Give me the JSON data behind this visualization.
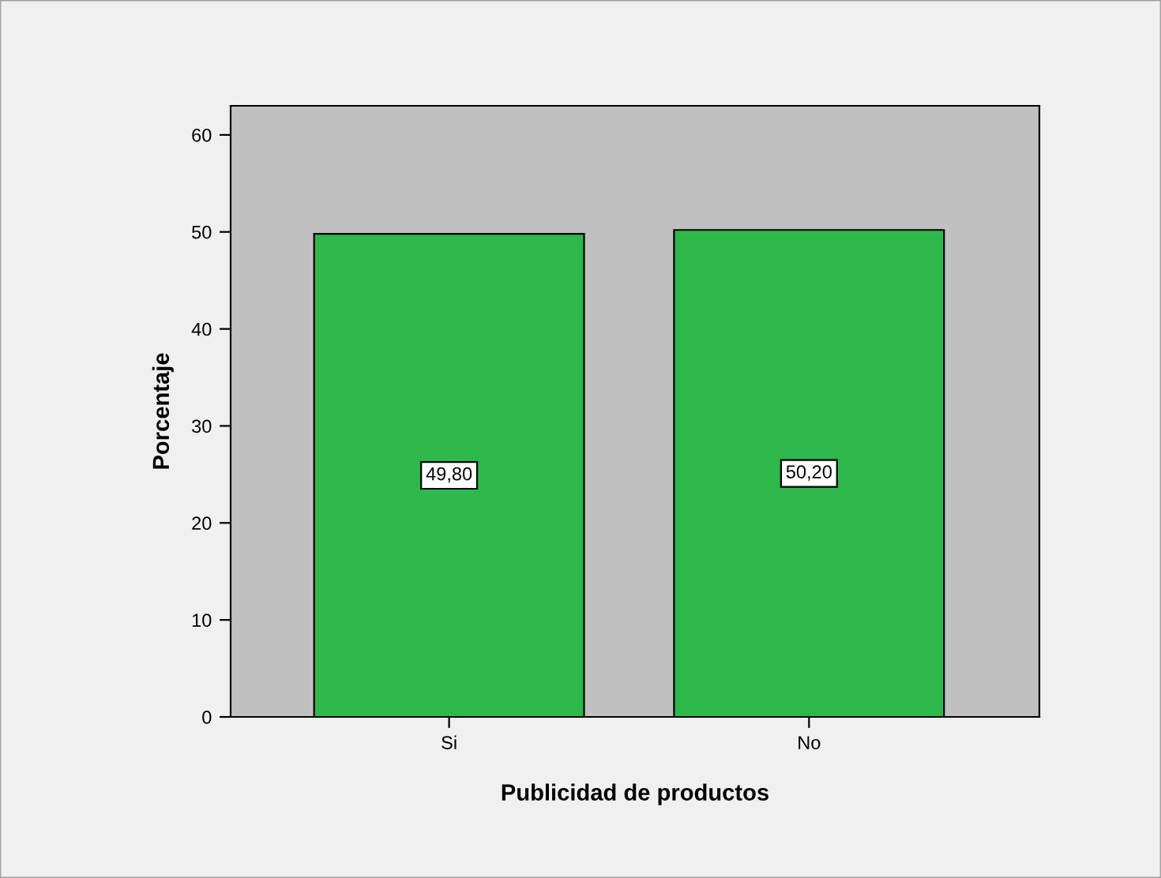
{
  "chart_data": {
    "type": "bar",
    "categories": [
      "Si",
      "No"
    ],
    "values": [
      49.8,
      50.2
    ],
    "color": "#2eb84b",
    "value_labels": [
      "49,80",
      "50,20"
    ],
    "xlabel": "Publicidad de productos",
    "ylabel": "Porcentaje",
    "ylim": [
      0,
      63
    ],
    "yticks": [
      0,
      10,
      20,
      30,
      40,
      50,
      60
    ]
  }
}
